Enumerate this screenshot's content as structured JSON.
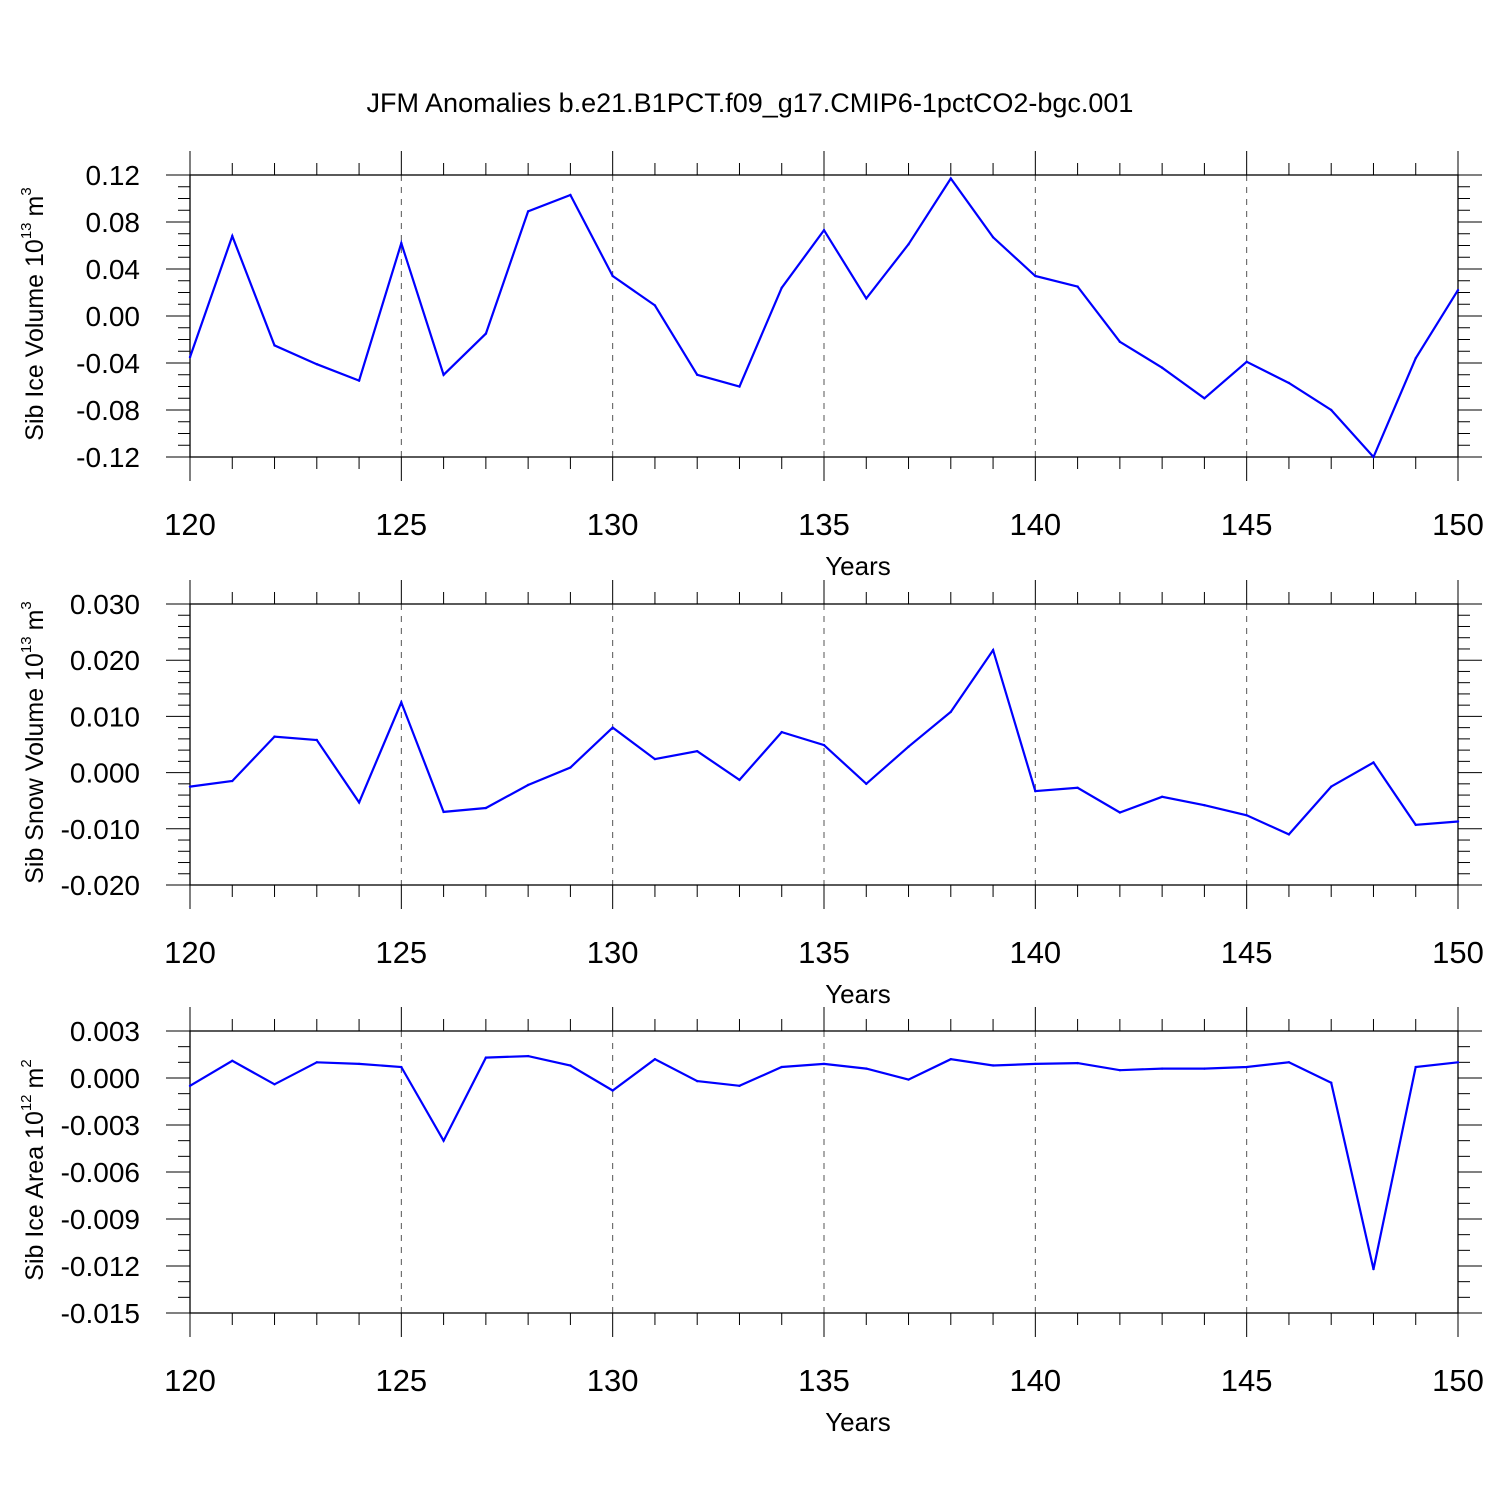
{
  "title": "JFM Anomalies b.e21.B1PCT.f09_g17.CMIP6-1pctCO2-bgc.001",
  "colors": {
    "series": "#0000ff",
    "axis": "#000000",
    "grid": "#555555"
  },
  "chart_data": [
    {
      "type": "line",
      "ylabel": {
        "text": "Sib Ice Volume 10",
        "exponent": "13",
        "unit": "m",
        "unit_exponent": "3"
      },
      "xlabel": "Years",
      "xlim": [
        120,
        150
      ],
      "ylim": [
        -0.12,
        0.12
      ],
      "yticks": [
        -0.12,
        -0.08,
        -0.04,
        0.0,
        0.04,
        0.08,
        0.12
      ],
      "ytick_labels": [
        "-0.12",
        "-0.08",
        "-0.04",
        "0.00",
        "0.04",
        "0.08",
        "0.12"
      ],
      "yminor_step": 0.01,
      "xticks": [
        120,
        125,
        130,
        135,
        140,
        145,
        150
      ],
      "xtick_labels": [
        "120",
        "125",
        "130",
        "135",
        "140",
        "145",
        "150"
      ],
      "grid_x": true,
      "x": [
        120,
        121,
        122,
        123,
        124,
        125,
        126,
        127,
        128,
        129,
        130,
        131,
        132,
        133,
        134,
        135,
        136,
        137,
        138,
        139,
        140,
        141,
        142,
        143,
        144,
        145,
        146,
        147,
        148,
        149,
        150
      ],
      "values": [
        -0.035,
        0.068,
        -0.025,
        -0.041,
        -0.055,
        0.062,
        -0.05,
        -0.015,
        0.089,
        0.103,
        0.034,
        0.009,
        -0.05,
        -0.06,
        0.024,
        0.073,
        0.015,
        0.061,
        0.117,
        0.067,
        0.034,
        0.025,
        -0.022,
        -0.044,
        -0.07,
        -0.039,
        -0.057,
        -0.08,
        -0.12,
        -0.036,
        0.022
      ]
    },
    {
      "type": "line",
      "ylabel": {
        "text": "Sib Snow Volume 10",
        "exponent": "13",
        "unit": "m",
        "unit_exponent": "3"
      },
      "xlabel": "Years",
      "xlim": [
        120,
        150
      ],
      "ylim": [
        -0.02,
        0.03
      ],
      "yticks": [
        -0.02,
        -0.01,
        0.0,
        0.01,
        0.02,
        0.03
      ],
      "ytick_labels": [
        "-0.020",
        "-0.010",
        "0.000",
        "0.010",
        "0.020",
        "0.030"
      ],
      "yminor_step": 0.002,
      "xticks": [
        120,
        125,
        130,
        135,
        140,
        145,
        150
      ],
      "xtick_labels": [
        "120",
        "125",
        "130",
        "135",
        "140",
        "145",
        "150"
      ],
      "grid_x": true,
      "x": [
        120,
        121,
        122,
        123,
        124,
        125,
        126,
        127,
        128,
        129,
        130,
        131,
        132,
        133,
        134,
        135,
        136,
        137,
        138,
        139,
        140,
        141,
        142,
        143,
        144,
        145,
        146,
        147,
        148,
        149,
        150
      ],
      "values": [
        -0.0025,
        -0.0015,
        0.0064,
        0.0058,
        -0.0053,
        0.0125,
        -0.007,
        -0.0063,
        -0.0022,
        0.0009,
        0.008,
        0.0024,
        0.0038,
        -0.0013,
        0.0072,
        0.0049,
        -0.002,
        0.0046,
        0.0108,
        0.0218,
        -0.0033,
        -0.0027,
        -0.0071,
        -0.0043,
        -0.0058,
        -0.0076,
        -0.011,
        -0.0025,
        0.0018,
        -0.0093,
        -0.0087
      ]
    },
    {
      "type": "line",
      "ylabel": {
        "text": "Sib Ice Area 10",
        "exponent": "12",
        "unit": "m",
        "unit_exponent": "2"
      },
      "xlabel": "Years",
      "xlim": [
        120,
        150
      ],
      "ylim": [
        -0.015,
        0.003
      ],
      "yticks": [
        -0.015,
        -0.012,
        -0.009,
        -0.006,
        -0.003,
        0.0,
        0.003
      ],
      "ytick_labels": [
        "-0.015",
        "-0.012",
        "-0.009",
        "-0.006",
        "-0.003",
        "0.000",
        "0.003"
      ],
      "yminor_step": 0.001,
      "xticks": [
        120,
        125,
        130,
        135,
        140,
        145,
        150
      ],
      "xtick_labels": [
        "120",
        "125",
        "130",
        "135",
        "140",
        "145",
        "150"
      ],
      "grid_x": true,
      "x": [
        120,
        121,
        122,
        123,
        124,
        125,
        126,
        127,
        128,
        129,
        130,
        131,
        132,
        133,
        134,
        135,
        136,
        137,
        138,
        139,
        140,
        141,
        142,
        143,
        144,
        145,
        146,
        147,
        148,
        149,
        150
      ],
      "values": [
        -0.0005,
        0.0011,
        -0.0004,
        0.001,
        0.0009,
        0.0007,
        -0.004,
        0.0013,
        0.0014,
        0.0008,
        -0.0008,
        0.0012,
        -0.0002,
        -0.0005,
        0.0007,
        0.0009,
        0.0006,
        -0.0001,
        0.0012,
        0.0008,
        0.0009,
        0.00095,
        0.0005,
        0.0006,
        0.0006,
        0.0007,
        0.001,
        -0.0003,
        -0.0122,
        0.0007,
        0.001
      ]
    }
  ]
}
